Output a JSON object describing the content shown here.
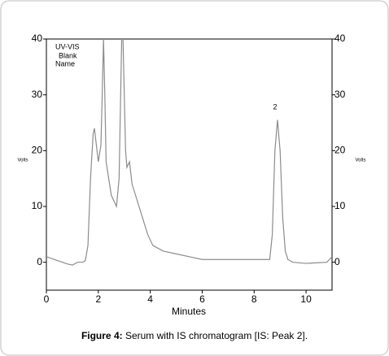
{
  "chart_data": {
    "type": "line",
    "legend_lines": [
      "UV-VIS",
      "Blank",
      "Name"
    ],
    "y_label": "Volts",
    "y2_label": "Volts",
    "x_label": "Minutes",
    "peak_label": "2",
    "color": "#8c8c8c",
    "x": [
      0,
      0.3,
      0.8,
      1.0,
      1.2,
      1.4,
      1.5,
      1.6,
      1.7,
      1.8,
      1.85,
      1.95,
      2.0,
      2.1,
      2.15,
      2.2,
      2.25,
      2.3,
      2.5,
      2.7,
      2.8,
      2.9,
      2.95,
      3.0,
      3.05,
      3.1,
      3.2,
      3.3,
      3.5,
      3.7,
      3.9,
      4.1,
      4.5,
      5.0,
      5.5,
      6.0,
      7.0,
      8.0,
      8.6,
      8.7,
      8.8,
      8.9,
      9.0,
      9.1,
      9.2,
      9.3,
      9.5,
      10.0,
      10.8,
      11.0
    ],
    "values": [
      1.0,
      0.5,
      -0.3,
      -0.5,
      0,
      0,
      0.3,
      3,
      15,
      23,
      24,
      20,
      18,
      21,
      30,
      40,
      30,
      18,
      12,
      10,
      15,
      40,
      40,
      30,
      20,
      17,
      18,
      14,
      11,
      8,
      5,
      3,
      2,
      1.5,
      1,
      0.5,
      0.5,
      0.5,
      0.5,
      5,
      20,
      25.5,
      20,
      8,
      2,
      0.5,
      0,
      -0.2,
      0,
      1
    ],
    "xlim": [
      0,
      11
    ],
    "xticks": [
      0,
      2,
      4,
      6,
      8,
      10
    ],
    "ylim": [
      -5,
      40
    ],
    "yticks": [
      0,
      10,
      20,
      30,
      40
    ],
    "y2lim": [
      -5,
      40
    ],
    "y2ticks": [
      0,
      10,
      20,
      30,
      40
    ]
  },
  "caption": {
    "label": "Figure 4:",
    "text": "Serum with IS chromatogram [IS: Peak 2]."
  }
}
